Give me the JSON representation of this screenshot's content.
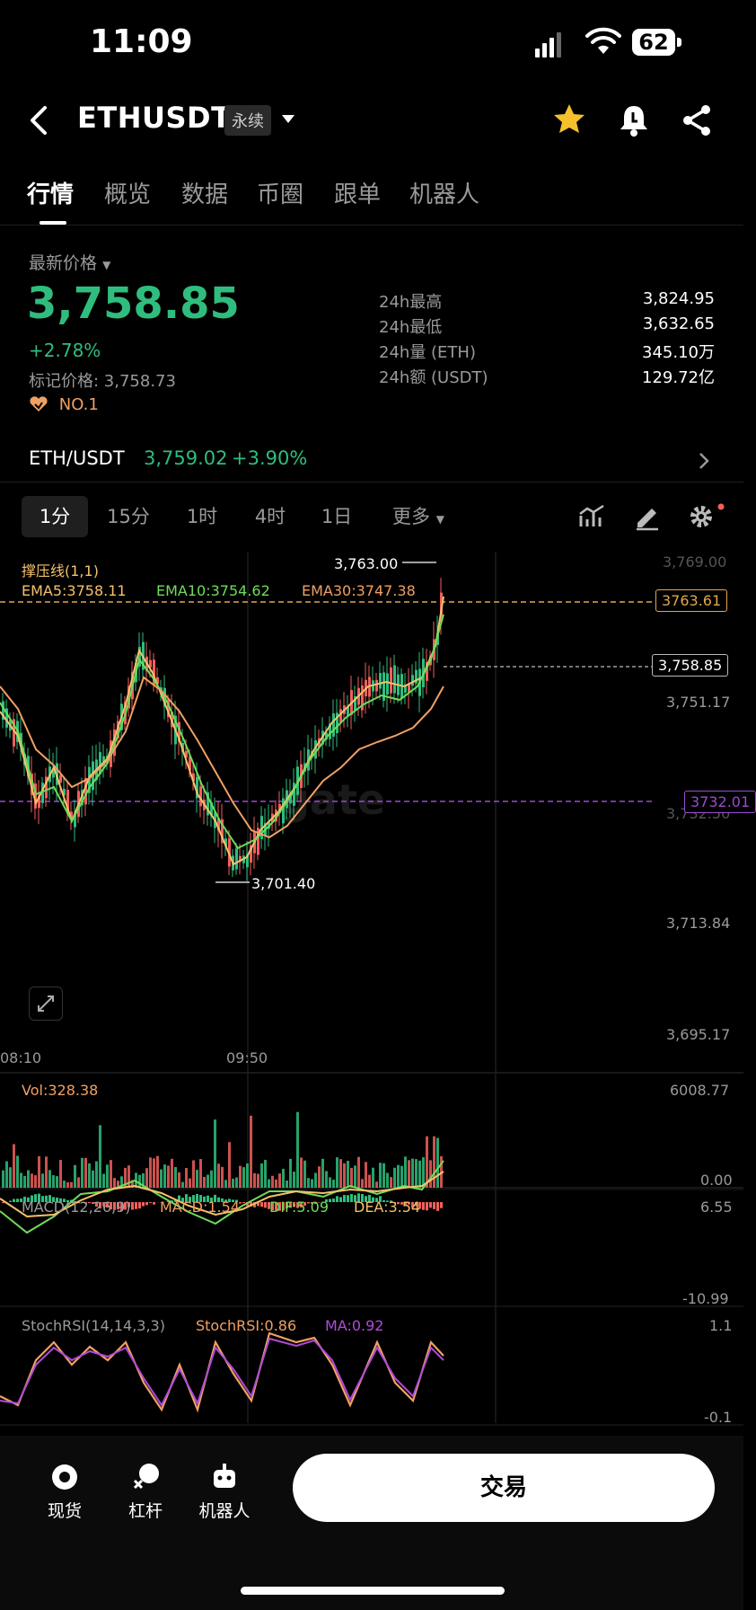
{
  "status": {
    "time": "11:09",
    "battery": "62"
  },
  "nav": {
    "title": "ETHUSDT",
    "badge": "永续"
  },
  "tabs": [
    "行情",
    "概览",
    "数据",
    "币圈",
    "跟单",
    "机器人"
  ],
  "summary": {
    "latest_label": "最新价格",
    "price": "3,758.85",
    "change_pct": "+2.78%",
    "mark_price": "标记价格: 3,758.73",
    "rank": "NO.1",
    "stats": [
      {
        "label": "24h最高",
        "value": "3,824.95"
      },
      {
        "label": "24h最低",
        "value": "3,632.65"
      },
      {
        "label": "24h量 (ETH)",
        "value": "345.10万"
      },
      {
        "label": "24h额 (USDT)",
        "value": "129.72亿"
      }
    ]
  },
  "spot": {
    "pair": "ETH/USDT",
    "price": "3,759.02",
    "change": "+3.90%"
  },
  "timeframes": [
    "1分",
    "15分",
    "1时",
    "4时",
    "1日",
    "更多"
  ],
  "chart": {
    "indicator_title": "撑压线(1,1)",
    "ema5": "EMA5:3758.11",
    "ema10": "EMA10:3754.62",
    "ema30": "EMA30:3747.38",
    "tag_resistance": "3763.61",
    "tag_last": "3,758.85",
    "tag_support": "3732.01",
    "high_label": "3,763.00",
    "low_label": "3,701.40",
    "axis_top": "3,769.00",
    "axis_1": "3,751.17",
    "axis_2": "3,732.50",
    "axis_3": "3,713.84",
    "axis_4": "3,695.17",
    "time_1": "08:10",
    "time_2": "09:50",
    "watermark": "gate"
  },
  "volume": {
    "label": "Vol:328.38",
    "max": "6008.77",
    "min": "0.00"
  },
  "macd": {
    "title": "MACD(12,26,9)",
    "macd": "MACD:1.54",
    "dif": "DIF:5.09",
    "dea": "DEA:3.54",
    "max": "6.55",
    "min": "-10.99"
  },
  "stochrsi": {
    "title": "StochRSI(14,14,3,3)",
    "value": "StochRSI:0.86",
    "ma": "MA:0.92",
    "max": "1.1",
    "min": "-0.1"
  },
  "bottom": {
    "spot": "现货",
    "leverage": "杠杆",
    "bot": "机器人",
    "trade": "交易"
  },
  "colors": {
    "up": "#2fbd7e",
    "down": "#f0605c",
    "ema5": "#f5c26b",
    "ema10": "#6fdc5a",
    "ema30": "#f0a063",
    "stoch_ma": "#b04ad8"
  }
}
